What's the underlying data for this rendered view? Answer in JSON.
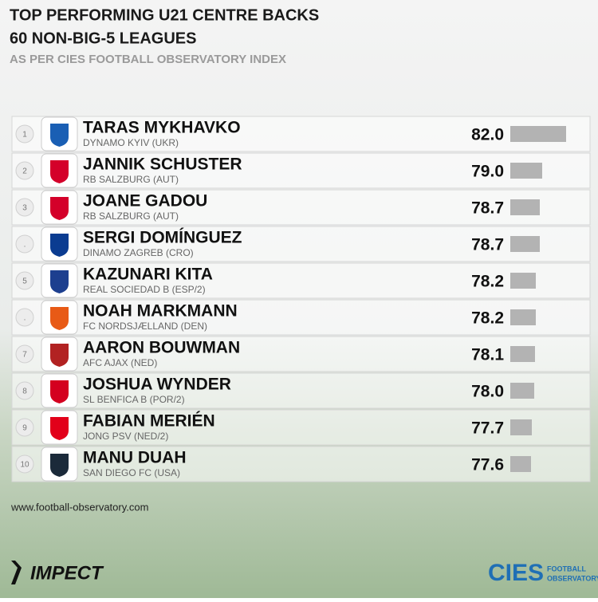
{
  "chart_data": {
    "type": "bar",
    "title": "TOP PERFORMING U21 CENTRE BACKS",
    "subtitle": "60 NON-BIG-5 LEAGUES",
    "note": "AS PER CIES FOOTBALL OBSERVATORY INDEX",
    "ranks": [
      "1",
      "2",
      "3",
      ".",
      "5",
      ".",
      "7",
      "8",
      "9",
      "10"
    ],
    "categories": [
      "TARAS MYKHAVKO",
      "JANNIK SCHUSTER",
      "JOANE GADOU",
      "SERGI DOMÍNGUEZ",
      "KAZUNARI KITA",
      "NOAH MARKMANN",
      "AARON BOUWMAN",
      "JOSHUA WYNDER",
      "FABIAN MERIÉN",
      "MANU DUAH"
    ],
    "clubs": [
      "DYNAMO KYIV (UKR)",
      "RB SALZBURG (AUT)",
      "RB SALZBURG (AUT)",
      "DINAMO ZAGREB (CRO)",
      "REAL SOCIEDAD B (ESP/2)",
      "FC NORDSJÆLLAND (DEN)",
      "AFC AJAX (NED)",
      "SL BENFICA B (POR/2)",
      "JONG PSV (NED/2)",
      "SAN DIEGO FC (USA)"
    ],
    "values": [
      82.0,
      79.0,
      78.7,
      78.7,
      78.2,
      78.2,
      78.1,
      78.0,
      77.7,
      77.6
    ],
    "value_labels": [
      "82.0",
      "79.0",
      "78.7",
      "78.7",
      "78.2",
      "78.2",
      "78.1",
      "78.0",
      "77.7",
      "77.6"
    ],
    "color": "#b3b3b3",
    "xlim": [
      75,
      82
    ]
  },
  "footer": {
    "source": "www.football-observatory.com",
    "left_logo": "IMPECT",
    "right_logo": "CIES",
    "right_logo_sub": [
      "FOOTBALL",
      "OBSERVATORY"
    ]
  }
}
